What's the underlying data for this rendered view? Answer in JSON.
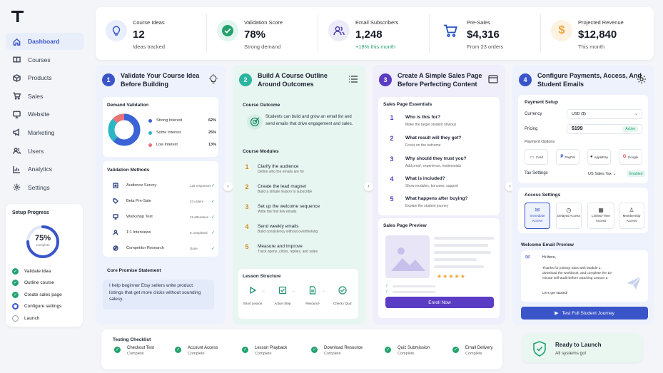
{
  "nav": [
    {
      "label": "Dashboard",
      "icon": "home-icon"
    },
    {
      "label": "Courses",
      "icon": "book-icon"
    },
    {
      "label": "Products",
      "icon": "box-icon"
    },
    {
      "label": "Sales",
      "icon": "cart-icon"
    },
    {
      "label": "Website",
      "icon": "monitor-icon"
    },
    {
      "label": "Marketing",
      "icon": "megaphone-icon"
    },
    {
      "label": "Users",
      "icon": "users-icon"
    },
    {
      "label": "Analytics",
      "icon": "chart-icon"
    },
    {
      "label": "Settings",
      "icon": "gear-icon"
    }
  ],
  "setup": {
    "title": "Setup Progress",
    "percent": "75%",
    "percent_label": "Complete",
    "progress_fraction": 0.75,
    "items": [
      {
        "label": "Validate idea",
        "state": "done"
      },
      {
        "label": "Outline course",
        "state": "done"
      },
      {
        "label": "Create sales page",
        "state": "done"
      },
      {
        "label": "Configure settings",
        "state": "current"
      },
      {
        "label": "Launch",
        "state": "todo"
      }
    ]
  },
  "stats": [
    {
      "label": "Course Ideas",
      "value": "12",
      "sub": "Ideas tracked",
      "icon": "lightbulb-icon"
    },
    {
      "label": "Validation Score",
      "value": "78%",
      "sub": "Strong demand",
      "icon": "check-circle-icon"
    },
    {
      "label": "Email Subscribers",
      "value": "1,248",
      "sub": "+18% this month",
      "icon": "users-icon"
    },
    {
      "label": "Pre-Sales",
      "value": "$4,316",
      "sub": "From 23 orders",
      "icon": "cart-icon"
    },
    {
      "label": "Projected Revenue",
      "value": "$12,840",
      "sub": "This month",
      "icon": "dollar-icon"
    }
  ],
  "steps": [
    {
      "num": "1",
      "title": "Validate Your Course Idea Before Building"
    },
    {
      "num": "2",
      "title": "Build A Course Outline Around Outcomes"
    },
    {
      "num": "3",
      "title": "Create A Simple Sales Page Before Perfecting Content"
    },
    {
      "num": "4",
      "title": "Configure Payments, Access, And Student Emails"
    }
  ],
  "validation": {
    "demand_title": "Demand Validation",
    "legend": [
      {
        "label": "Strong Interest",
        "value": "62%",
        "color": "#3b63d6",
        "fraction": 0.62
      },
      {
        "label": "Some Interest",
        "value": "25%",
        "color": "#2bb5c5",
        "fraction": 0.25
      },
      {
        "label": "Low Interest",
        "value": "13%",
        "color": "#e8737a",
        "fraction": 0.13
      }
    ],
    "methods_title": "Validation Methods",
    "methods": [
      {
        "label": "Audience Survey",
        "count": "128 responses"
      },
      {
        "label": "Beta Pre-Sale",
        "count": "23 orders"
      },
      {
        "label": "Workshop Test",
        "count": "18 attendees"
      },
      {
        "label": "1:1 Interviews",
        "count": "8 completed"
      },
      {
        "label": "Competitor Research",
        "count": "Done"
      }
    ],
    "promise_title": "Core Promise Statement",
    "promise": "I help beginner Etsy sellers write product listings that get more clicks without sounding salesy."
  },
  "outline": {
    "outcome_title": "Course Outcome",
    "outcome": "Students can build and grow an email list and send emails that drive engagement and sales.",
    "modules_title": "Course Modules",
    "modules": [
      {
        "num": "1",
        "title": "Clarify the audience",
        "sub": "Define who the emails are for"
      },
      {
        "num": "2",
        "title": "Create the lead magnet",
        "sub": "Build a simple reason to subscribe"
      },
      {
        "num": "3",
        "title": "Set up the welcome sequence",
        "sub": "Write the first few emails"
      },
      {
        "num": "4",
        "title": "Send weekly emails",
        "sub": "Build consistency without overthinking"
      },
      {
        "num": "5",
        "title": "Measure and improve",
        "sub": "Track opens, clicks, replies, and sales"
      }
    ],
    "structure_title": "Lesson Structure",
    "structure": [
      "Short Lesson",
      "Action Step",
      "Resource",
      "Check / Quiz"
    ]
  },
  "sales": {
    "essentials_title": "Sales Page Essentials",
    "essentials": [
      {
        "num": "1",
        "q": "Who is this for?",
        "a": "Make the target student obvious"
      },
      {
        "num": "2",
        "q": "What result will they get?",
        "a": "Focus on the outcome"
      },
      {
        "num": "3",
        "q": "Why should they trust you?",
        "a": "Add proof, experience, testimonials"
      },
      {
        "num": "4",
        "q": "What is included?",
        "a": "Show modules, bonuses, support"
      },
      {
        "num": "5",
        "q": "What happens after buying?",
        "a": "Explain the student journey"
      }
    ],
    "preview_title": "Sales Page Preview",
    "stars": "★★★★★",
    "enroll": "Enroll Now"
  },
  "config": {
    "payment_title": "Payment Setup",
    "currency_label": "Currency",
    "currency": "USD ($)",
    "pricing_label": "Pricing",
    "price": "$199",
    "price_status": "Active",
    "options_label": "Payment Options",
    "options": [
      "Card",
      "PayPal",
      "ApplePay",
      "Google"
    ],
    "tax_label": "Tax Settings",
    "tax": "US Sales Tax",
    "tax_status": "Enabled",
    "access_title": "Access Settings",
    "access": [
      "Immediate Access",
      "Delayed Access",
      "Limited-Time Access",
      "Membership Access"
    ],
    "email_title": "Welcome Email Preview",
    "email_greeting": "Hi there,",
    "email_body": "Thanks for joining! Start with Module 1, download the workbook, and complete the 10-minute self-audit before watching Lesson 2.",
    "email_sign": "Let's get started!",
    "test_button": "Test Full Student Journey"
  },
  "testing": {
    "title": "Testing Checklist",
    "items": [
      {
        "label": "Checkout Test",
        "status": "Complete"
      },
      {
        "label": "Account Access",
        "status": "Complete"
      },
      {
        "label": "Lesson Playback",
        "status": "Complete"
      },
      {
        "label": "Download Resource",
        "status": "Complete"
      },
      {
        "label": "Quiz Submission",
        "status": "Complete"
      },
      {
        "label": "Email Delivery",
        "status": "Complete"
      }
    ]
  },
  "launch": {
    "title": "Ready to Launch",
    "sub": "All systems go!"
  },
  "colors": {
    "primary": "#3a55c9",
    "green": "#23a26d",
    "teal": "#2bb5a0",
    "purple": "#5b3cc4",
    "orange": "#f1a33a"
  }
}
